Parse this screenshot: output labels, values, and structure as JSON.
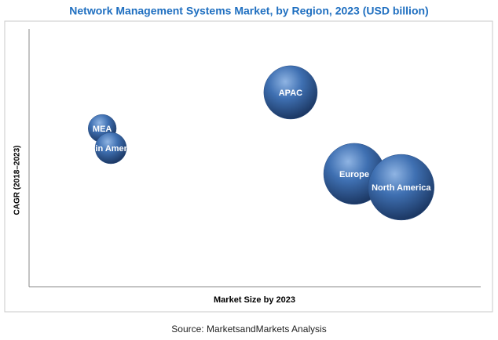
{
  "chart_data": {
    "type": "bubble",
    "title": "Network Management Systems Market, by Region, 2023 (USD billion)",
    "x_label": "Market Size by 2023",
    "y_label": "CAGR (2018–2023)",
    "categories": [
      "APAC",
      "MEA",
      "Latin America",
      "Europe",
      "North America"
    ],
    "x": [
      57.9,
      16.2,
      18.1,
      72.0,
      82.4
    ],
    "values": [
      75.4,
      61.4,
      53.8,
      43.8,
      38.6
    ],
    "sizes": [
      1.16,
      0.32,
      0.4,
      1.52,
      1.76
    ],
    "xlim": [
      0,
      100
    ],
    "ylim": [
      0,
      100
    ],
    "color": "#3d6fb0"
  },
  "source": "Source: MarketsandMarkets Analysis"
}
